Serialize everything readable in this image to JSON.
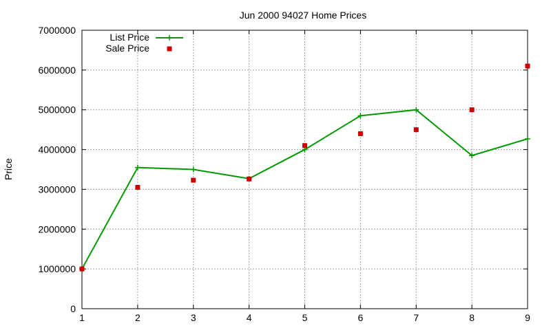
{
  "chart_data": {
    "type": "line",
    "title": "Jun 2000 94027 Home Prices",
    "xlabel": "",
    "ylabel": "Price",
    "xlim": [
      1,
      9
    ],
    "ylim": [
      0,
      7000000
    ],
    "x_ticks": [
      "1",
      "2",
      "3",
      "4",
      "5",
      "6",
      "7",
      "8",
      "9"
    ],
    "y_ticks": [
      "0",
      "1000000",
      "2000000",
      "3000000",
      "4000000",
      "5000000",
      "6000000",
      "7000000"
    ],
    "grid": true,
    "legend_position": "top-left",
    "x": [
      1,
      2,
      3,
      4,
      5,
      6,
      7,
      8,
      9
    ],
    "series": [
      {
        "name": "List Price",
        "style": "linespoints",
        "color": "#009900",
        "marker": "plus",
        "values": [
          1000000,
          3550000,
          3500000,
          3270000,
          4000000,
          4850000,
          5000000,
          3850000,
          4270000
        ]
      },
      {
        "name": "Sale Price",
        "style": "points",
        "color": "#cc0000",
        "marker": "square",
        "values": [
          1000000,
          3050000,
          3230000,
          3260000,
          4100000,
          4400000,
          4500000,
          5000000,
          6100000
        ]
      }
    ]
  }
}
